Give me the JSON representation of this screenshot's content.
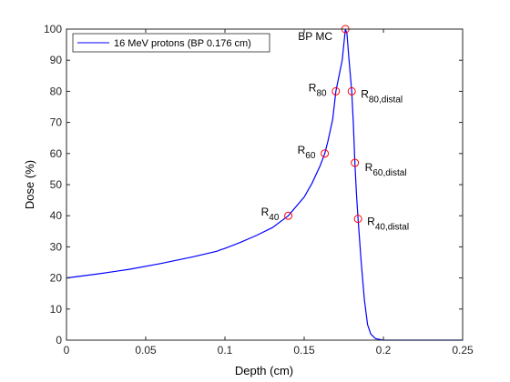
{
  "chart_data": {
    "type": "line",
    "xlabel": "Depth (cm)",
    "ylabel": "Dose (%)",
    "xlim": [
      0,
      0.25
    ],
    "ylim": [
      0,
      100
    ],
    "xticks": [
      0,
      0.05,
      0.1,
      0.15,
      0.2,
      0.25
    ],
    "xtick_labels": [
      "0",
      "0.05",
      "0.1",
      "0.15",
      "0.2",
      "0.25"
    ],
    "yticks": [
      0,
      10,
      20,
      30,
      40,
      50,
      60,
      70,
      80,
      90,
      100
    ],
    "ytick_labels": [
      "0",
      "10",
      "20",
      "30",
      "40",
      "50",
      "60",
      "70",
      "80",
      "90",
      "100"
    ],
    "grid": false,
    "legend_position": "top-left",
    "colors": {
      "line": "#0000ff",
      "marker": "#ff0000",
      "axis": "#262626"
    },
    "series": [
      {
        "name": "16 MeV protons (BP 0.176 cm)",
        "x": [
          0,
          0.02,
          0.04,
          0.06,
          0.08,
          0.095,
          0.097,
          0.1,
          0.11,
          0.12,
          0.13,
          0.14,
          0.15,
          0.155,
          0.16,
          0.163,
          0.165,
          0.168,
          0.17,
          0.172,
          0.174,
          0.176,
          0.177,
          0.178,
          0.179,
          0.18,
          0.181,
          0.182,
          0.183,
          0.184,
          0.186,
          0.188,
          0.19,
          0.192,
          0.195,
          0.2,
          0.25
        ],
        "y": [
          20,
          21.3,
          22.8,
          24.7,
          26.8,
          28.6,
          29,
          29.5,
          31.5,
          33.7,
          36.2,
          40,
          46,
          50.5,
          56,
          60,
          64,
          71,
          80,
          85,
          90,
          100,
          98.5,
          92,
          86,
          80,
          70,
          57,
          47,
          39,
          25,
          13,
          5,
          2,
          0.5,
          0,
          0
        ]
      }
    ],
    "markers": [
      {
        "label": "BP MC",
        "x": 0.176,
        "y": 100
      },
      {
        "label": "R80",
        "x": 0.17,
        "y": 80
      },
      {
        "label": "R80,distal",
        "x": 0.18,
        "y": 80
      },
      {
        "label": "R60",
        "x": 0.163,
        "y": 60
      },
      {
        "label": "R60,distal",
        "x": 0.182,
        "y": 57
      },
      {
        "label": "R40",
        "x": 0.14,
        "y": 40
      },
      {
        "label": "R40,distal",
        "x": 0.184,
        "y": 39
      }
    ],
    "annotations": [
      {
        "name": "bp-mc",
        "main": "BP MC",
        "sub": "",
        "anchor": 0,
        "side": "left"
      },
      {
        "name": "r80",
        "main": "R",
        "sub": "80",
        "anchor": 1,
        "side": "left"
      },
      {
        "name": "r80-distal",
        "main": "R",
        "sub": "80,distal",
        "anchor": 2,
        "side": "right"
      },
      {
        "name": "r60",
        "main": "R",
        "sub": "60",
        "anchor": 3,
        "side": "left"
      },
      {
        "name": "r60-distal",
        "main": "R",
        "sub": "60,distal",
        "anchor": 4,
        "side": "right"
      },
      {
        "name": "r40",
        "main": "R",
        "sub": "40",
        "anchor": 5,
        "side": "left"
      },
      {
        "name": "r40-distal",
        "main": "R",
        "sub": "40,distal",
        "anchor": 6,
        "side": "right"
      }
    ]
  }
}
